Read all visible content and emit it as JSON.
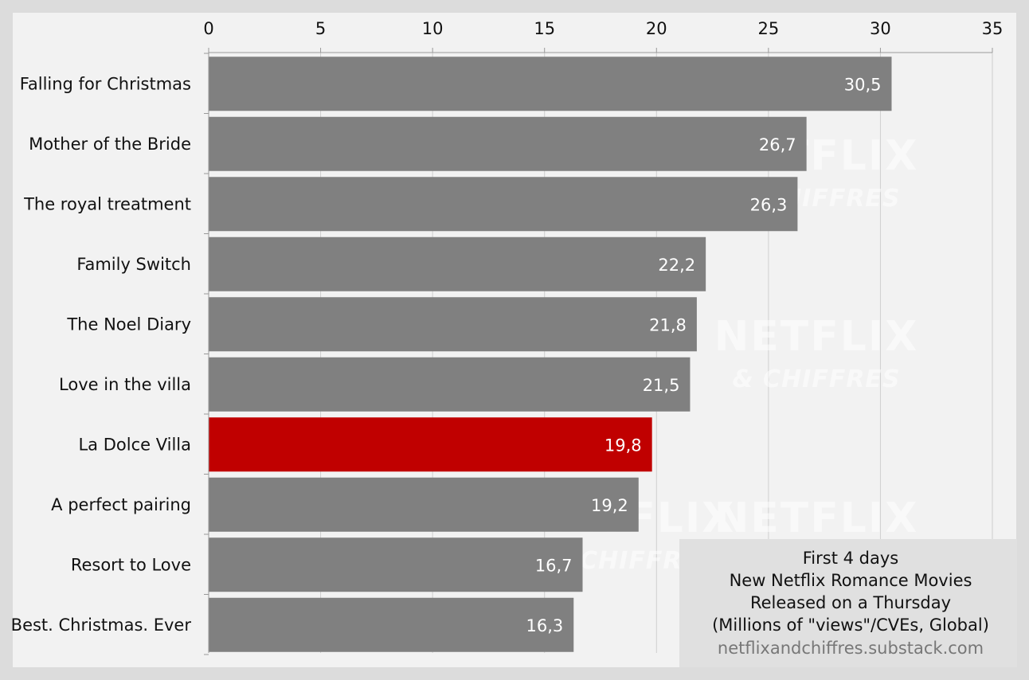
{
  "chart_data": {
    "type": "bar",
    "orientation": "horizontal",
    "categories": [
      "Falling for Christmas",
      "Mother of the Bride",
      "The royal treatment",
      "Family Switch",
      "The Noel Diary",
      "Love in the villa",
      "La Dolce Villa",
      "A perfect pairing",
      "Resort to Love",
      "Best. Christmas. Ever"
    ],
    "values": [
      30.5,
      26.7,
      26.3,
      22.2,
      21.8,
      21.5,
      19.8,
      19.2,
      16.7,
      16.3
    ],
    "value_labels": [
      "30,5",
      "26,7",
      "26,3",
      "22,2",
      "21,8",
      "21,5",
      "19,8",
      "19,2",
      "16,7",
      "16,3"
    ],
    "highlight_category": "La Dolce Villa",
    "xlim": [
      0,
      35
    ],
    "xticks": [
      0,
      5,
      10,
      15,
      20,
      25,
      30,
      35
    ],
    "x_axis_position": "top",
    "grid": true,
    "colors": {
      "bar": "#808080",
      "highlight": "#c00000",
      "plot_bg": "#f2f2f2",
      "page_bg": "#dcdcdc",
      "grid": "#cfcfcf"
    },
    "title": "",
    "xlabel": "",
    "ylabel": ""
  },
  "info_box": {
    "lines": [
      "First 4 days",
      "New Netflix Romance Movies",
      "Released on a Thursday",
      "(Millions of \"views\"/CVEs, Global)"
    ],
    "url": "netflixandchiffres.substack.com"
  },
  "watermark": {
    "logo_text": "NETFLIX",
    "sub_text": "& CHIFFRES"
  }
}
